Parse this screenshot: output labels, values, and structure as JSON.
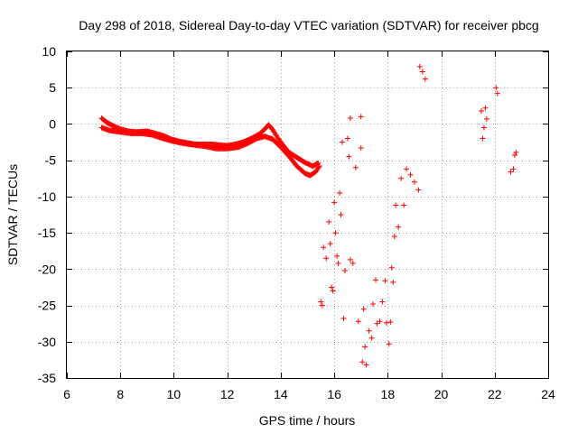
{
  "chart_data": {
    "type": "scatter",
    "title": "Day 298 of 2018, Sidereal Day-to-day VTEC variation (SDTVAR) for receiver pbcg",
    "xlabel": "GPS time / hours",
    "ylabel": "SDTVAR / TECUs",
    "xlim": [
      6,
      24
    ],
    "ylim": [
      -35,
      10
    ],
    "xticks": [
      6,
      8,
      10,
      12,
      14,
      16,
      18,
      20,
      22,
      24
    ],
    "yticks": [
      10,
      5,
      0,
      -5,
      -10,
      -15,
      -20,
      -25,
      -30,
      -35
    ],
    "grid": true,
    "marker": "plus",
    "color": "#ff0000",
    "series": [
      {
        "name": "main-track-upper",
        "points": [
          [
            7.3,
            0.8
          ],
          [
            7.5,
            0.2
          ],
          [
            7.7,
            -0.2
          ],
          [
            8.0,
            -0.7
          ],
          [
            8.3,
            -1.0
          ],
          [
            8.6,
            -1.1
          ],
          [
            9.0,
            -1.0
          ],
          [
            9.3,
            -1.3
          ],
          [
            9.6,
            -1.6
          ],
          [
            9.9,
            -2.1
          ],
          [
            10.2,
            -2.4
          ],
          [
            10.5,
            -2.6
          ],
          [
            10.8,
            -2.8
          ],
          [
            11.1,
            -2.8
          ],
          [
            11.4,
            -2.8
          ],
          [
            11.7,
            -2.9
          ],
          [
            12.0,
            -3.0
          ],
          [
            12.3,
            -2.8
          ],
          [
            12.6,
            -2.5
          ],
          [
            12.9,
            -2.0
          ],
          [
            13.2,
            -1.4
          ],
          [
            13.4,
            -0.7
          ],
          [
            13.55,
            -0.1
          ],
          [
            13.7,
            -0.8
          ],
          [
            13.9,
            -2.0
          ],
          [
            14.1,
            -3.0
          ],
          [
            14.3,
            -3.9
          ],
          [
            14.6,
            -4.6
          ],
          [
            14.9,
            -5.3
          ],
          [
            15.2,
            -5.8
          ],
          [
            15.4,
            -5.4
          ]
        ]
      },
      {
        "name": "main-track-lower",
        "points": [
          [
            7.3,
            -0.5
          ],
          [
            7.6,
            -0.9
          ],
          [
            8.0,
            -1.1
          ],
          [
            8.4,
            -1.3
          ],
          [
            8.8,
            -1.3
          ],
          [
            9.2,
            -1.5
          ],
          [
            9.6,
            -2.0
          ],
          [
            10.0,
            -2.4
          ],
          [
            10.4,
            -2.7
          ],
          [
            10.8,
            -2.9
          ],
          [
            11.2,
            -3.1
          ],
          [
            11.6,
            -3.4
          ],
          [
            12.0,
            -3.4
          ],
          [
            12.4,
            -3.2
          ],
          [
            12.8,
            -2.6
          ],
          [
            13.1,
            -2.0
          ],
          [
            13.4,
            -1.7
          ],
          [
            13.7,
            -2.1
          ],
          [
            14.0,
            -3.2
          ],
          [
            14.3,
            -4.4
          ],
          [
            14.6,
            -5.8
          ],
          [
            14.9,
            -6.8
          ],
          [
            15.1,
            -7.1
          ],
          [
            15.3,
            -6.6
          ],
          [
            15.45,
            -5.8
          ]
        ]
      },
      {
        "name": "afternoon-arcs",
        "points": [
          [
            15.5,
            -24.5
          ],
          [
            15.55,
            -25
          ],
          [
            15.6,
            -17
          ],
          [
            15.7,
            -18.5
          ],
          [
            15.8,
            -13.5
          ],
          [
            15.85,
            -16.5
          ],
          [
            15.9,
            -22.5
          ],
          [
            15.95,
            -23
          ],
          [
            16.0,
            -10.8
          ],
          [
            16.05,
            -15
          ],
          [
            16.1,
            -18.2
          ],
          [
            16.15,
            -19.2
          ],
          [
            16.2,
            -9.5
          ],
          [
            16.25,
            -12.5
          ],
          [
            16.3,
            -2.5
          ],
          [
            16.35,
            -26.8
          ],
          [
            16.4,
            -20.2
          ],
          [
            16.5,
            -2.0
          ],
          [
            16.55,
            -4.5
          ],
          [
            16.6,
            -18.7
          ],
          [
            16.6,
            0.8
          ],
          [
            16.7,
            -19.2
          ],
          [
            16.8,
            -6.0
          ],
          [
            16.9,
            -27.2
          ],
          [
            17.0,
            -3.3
          ],
          [
            17.0,
            1.0
          ],
          [
            17.05,
            -32.8
          ],
          [
            17.1,
            -25.5
          ],
          [
            17.15,
            -30.7
          ],
          [
            17.2,
            -33.2
          ],
          [
            17.3,
            -28.5
          ],
          [
            17.4,
            -29.5
          ],
          [
            17.45,
            -24.8
          ],
          [
            17.55,
            -21.5
          ],
          [
            17.6,
            -27.5
          ],
          [
            17.7,
            -27.2
          ],
          [
            17.8,
            -24.5
          ],
          [
            17.9,
            -21.6
          ],
          [
            17.95,
            -27.4
          ],
          [
            18.05,
            -30.3
          ],
          [
            18.1,
            -27.3
          ],
          [
            18.15,
            -19.8
          ],
          [
            18.2,
            -21.8
          ],
          [
            18.25,
            -15.5
          ],
          [
            18.3,
            -11.2
          ],
          [
            18.4,
            -14.2
          ],
          [
            18.5,
            -7.5
          ],
          [
            18.6,
            -11.2
          ],
          [
            18.7,
            -6.2
          ],
          [
            18.85,
            -7.0
          ],
          [
            19.0,
            -8.0
          ],
          [
            19.15,
            -9.1
          ],
          [
            19.2,
            7.9
          ],
          [
            19.3,
            7.2
          ],
          [
            19.4,
            6.2
          ],
          [
            21.5,
            1.8
          ],
          [
            21.55,
            -2.0
          ],
          [
            21.6,
            -0.5
          ],
          [
            21.65,
            2.2
          ],
          [
            21.7,
            0.7
          ],
          [
            22.05,
            5.0
          ],
          [
            22.1,
            4.2
          ],
          [
            22.6,
            -6.6
          ],
          [
            22.7,
            -6.2
          ],
          [
            22.75,
            -4.3
          ],
          [
            22.8,
            -3.9
          ]
        ]
      }
    ]
  }
}
